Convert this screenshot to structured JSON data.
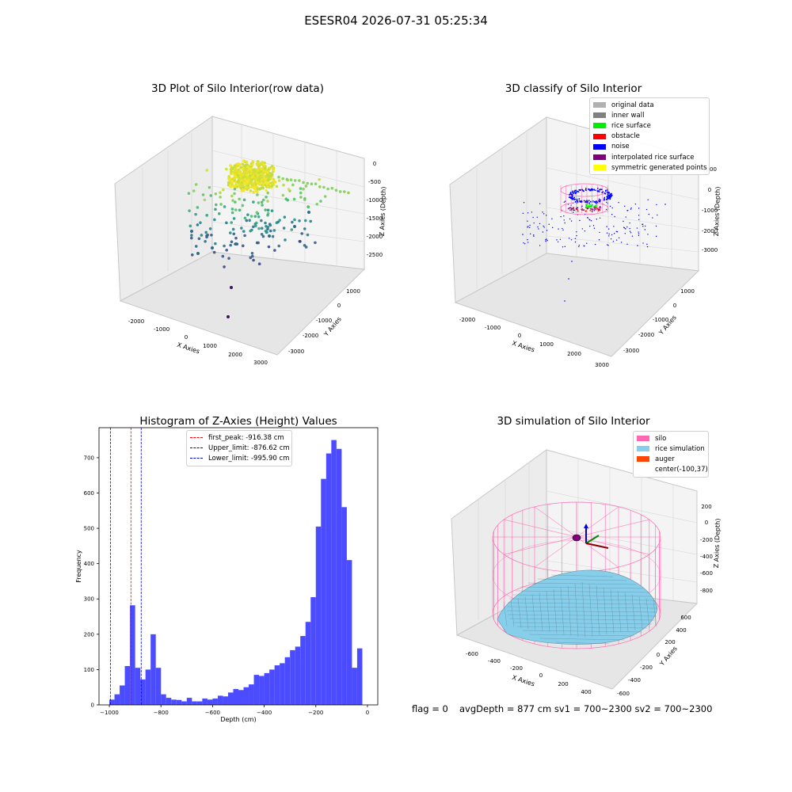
{
  "figure": {
    "suptitle": "ESESR04 2026-07-31 05:25:34",
    "bottom_left": "flag = 0",
    "bottom_right": "avgDepth = 877 cm  sv1 = 700~2300  sv2 = 700~2300"
  },
  "chart_data": [
    {
      "type": "scatter",
      "projection": "3d",
      "title": "3D Plot of Silo Interior(row data)",
      "xlabel": "X Axies",
      "ylabel": "Y Axies",
      "zlabel": "Z Axies (Depth)",
      "xticks": [
        "-2000",
        "-1000",
        "0",
        "1000",
        "2000",
        "3000"
      ],
      "yticks": [
        "1000",
        "0",
        "-1000",
        "-2000",
        "-3000"
      ],
      "zticks": [
        "0",
        "-500",
        "-1000",
        "-1500",
        "-2000",
        "-2500"
      ],
      "colormap": "viridis",
      "description_points": "dense cap of points near depth 0 spreading downward to about -2800"
    },
    {
      "type": "scatter",
      "projection": "3d",
      "title": "3D classify of Silo Interior",
      "xlabel": "X Axies",
      "ylabel": "Y Axies",
      "zlabel": "Z Axies (Depth)",
      "xticks": [
        "-2000",
        "-1000",
        "0",
        "1000",
        "2000",
        "3000"
      ],
      "yticks": [
        "1000",
        "0",
        "-1000",
        "-2000",
        "-3000"
      ],
      "zticks": [
        "1000",
        "0",
        "-1000",
        "-2000",
        "-3000"
      ],
      "legend": [
        {
          "label": "original data",
          "color": "#b0b0b0"
        },
        {
          "label": "inner wall",
          "color": "#808080"
        },
        {
          "label": "rice surface",
          "color": "#00ee00"
        },
        {
          "label": "obstacle",
          "color": "#ff0000"
        },
        {
          "label": "noise",
          "color": "#0000ff"
        },
        {
          "label": "interpolated rice surface",
          "color": "#800080"
        },
        {
          "label": "symmetric generated points",
          "color": "#ffff00"
        }
      ]
    },
    {
      "type": "bar",
      "title": "Histogram of Z-Axies (Height) Values",
      "xlabel": "Depth (cm)",
      "ylabel": "Frequency",
      "xlim": [
        -1040,
        40
      ],
      "ylim": [
        0,
        785
      ],
      "xticks": [
        -1000,
        -800,
        -600,
        -400,
        -200,
        0
      ],
      "yticks": [
        0,
        100,
        200,
        300,
        400,
        500,
        600,
        700
      ],
      "bin_width": 20,
      "bar_color": "#4b4bff",
      "bins": [
        {
          "x": -1000,
          "v": 15
        },
        {
          "x": -980,
          "v": 30
        },
        {
          "x": -960,
          "v": 55
        },
        {
          "x": -940,
          "v": 110
        },
        {
          "x": -920,
          "v": 282
        },
        {
          "x": -900,
          "v": 105
        },
        {
          "x": -880,
          "v": 72
        },
        {
          "x": -860,
          "v": 100
        },
        {
          "x": -840,
          "v": 200
        },
        {
          "x": -820,
          "v": 105
        },
        {
          "x": -800,
          "v": 30
        },
        {
          "x": -780,
          "v": 20
        },
        {
          "x": -760,
          "v": 15
        },
        {
          "x": -740,
          "v": 14
        },
        {
          "x": -720,
          "v": 10
        },
        {
          "x": -700,
          "v": 20
        },
        {
          "x": -680,
          "v": 10
        },
        {
          "x": -660,
          "v": 10
        },
        {
          "x": -640,
          "v": 18
        },
        {
          "x": -620,
          "v": 15
        },
        {
          "x": -600,
          "v": 18
        },
        {
          "x": -580,
          "v": 26
        },
        {
          "x": -560,
          "v": 24
        },
        {
          "x": -540,
          "v": 35
        },
        {
          "x": -520,
          "v": 45
        },
        {
          "x": -500,
          "v": 42
        },
        {
          "x": -480,
          "v": 50
        },
        {
          "x": -460,
          "v": 58
        },
        {
          "x": -440,
          "v": 85
        },
        {
          "x": -420,
          "v": 82
        },
        {
          "x": -400,
          "v": 90
        },
        {
          "x": -380,
          "v": 100
        },
        {
          "x": -360,
          "v": 112
        },
        {
          "x": -340,
          "v": 118
        },
        {
          "x": -320,
          "v": 135
        },
        {
          "x": -300,
          "v": 155
        },
        {
          "x": -280,
          "v": 165
        },
        {
          "x": -260,
          "v": 195
        },
        {
          "x": -240,
          "v": 235
        },
        {
          "x": -220,
          "v": 305
        },
        {
          "x": -200,
          "v": 505
        },
        {
          "x": -180,
          "v": 640
        },
        {
          "x": -160,
          "v": 712
        },
        {
          "x": -140,
          "v": 750
        },
        {
          "x": -120,
          "v": 725
        },
        {
          "x": -100,
          "v": 560
        },
        {
          "x": -80,
          "v": 410
        },
        {
          "x": -60,
          "v": 105
        },
        {
          "x": -40,
          "v": 160
        }
      ],
      "vlines": [
        {
          "label": "first_peak: -916.38 cm",
          "x": -916.38,
          "color": "#ff0000"
        },
        {
          "label": "Upper_limit: -876.62 cm",
          "x": -876.62,
          "color": "#0000cc"
        },
        {
          "label": "Lower_limit: -995.90 cm",
          "x": -995.9,
          "color": "#0000cc"
        }
      ]
    },
    {
      "type": "surface",
      "projection": "3d",
      "title": "3D simulation of Silo Interior",
      "xlabel": "X Axies",
      "ylabel": "Y Axies",
      "zlabel": "Z Axies (Depth)",
      "xticks": [
        "-600",
        "-400",
        "-200",
        "0",
        "200",
        "400"
      ],
      "yticks": [
        "600",
        "400",
        "200",
        "0",
        "-200",
        "-400",
        "-600"
      ],
      "zticks": [
        "200",
        "0",
        "-200",
        "-400",
        "-600",
        "-800"
      ],
      "legend": [
        {
          "label": "silo",
          "color": "#ff69b4"
        },
        {
          "label": "rice simulation",
          "color": "#87ceeb"
        },
        {
          "label": "auger",
          "color": "#ff4500"
        },
        {
          "label": "center(-100,37)",
          "color": null
        }
      ]
    }
  ]
}
